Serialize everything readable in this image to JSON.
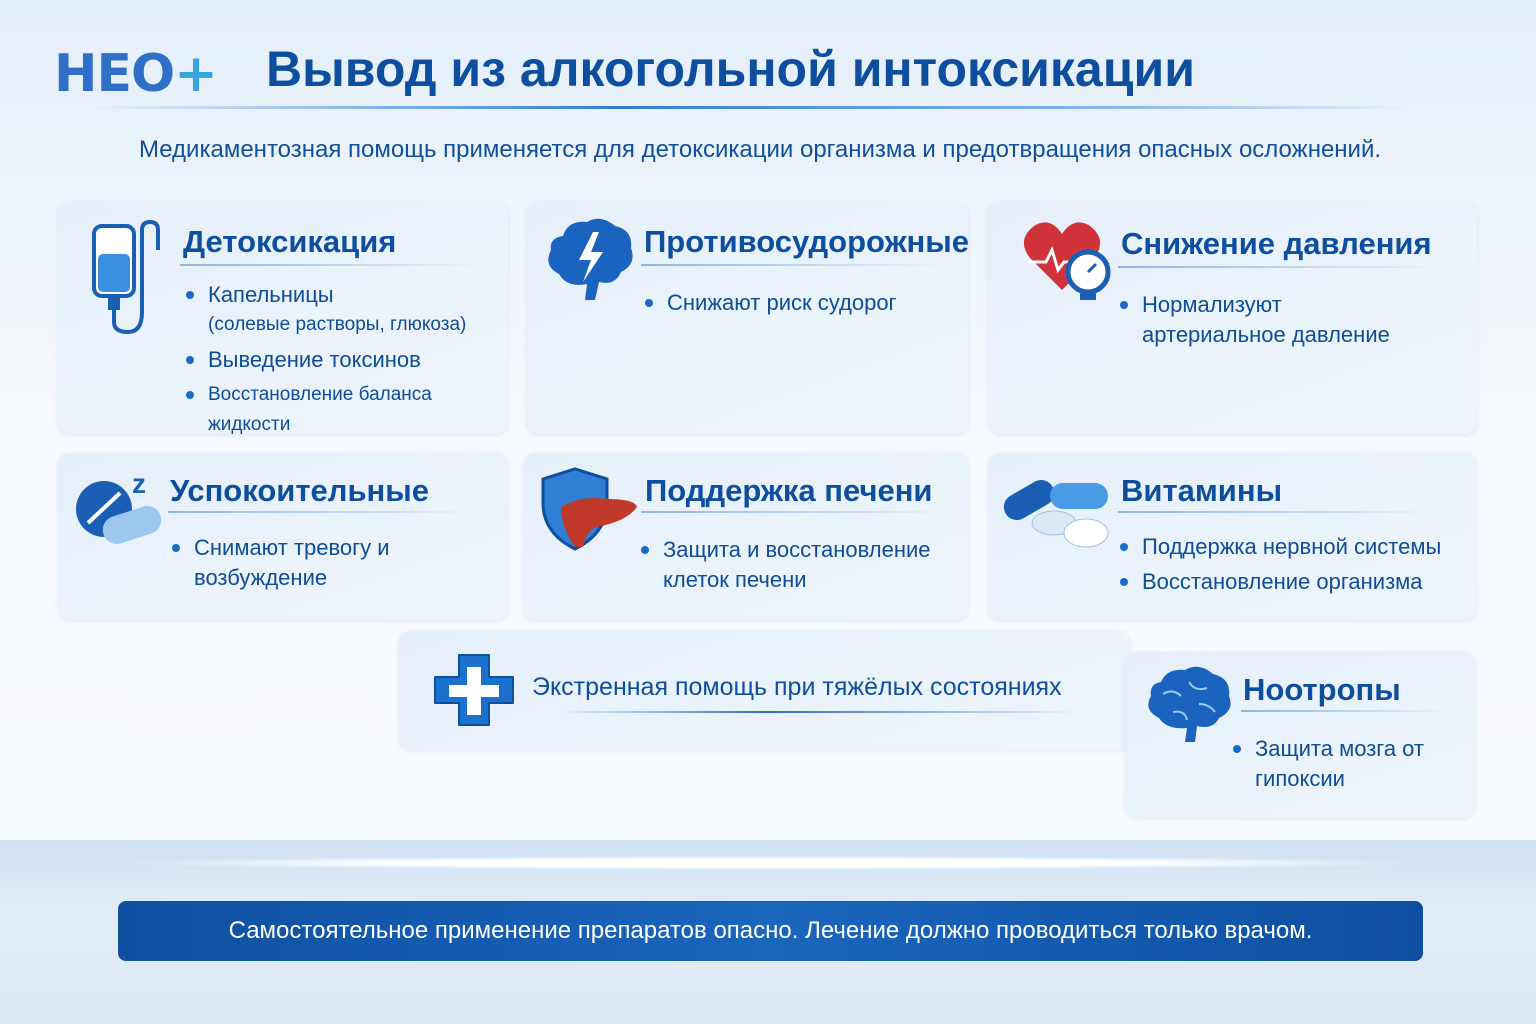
{
  "logo": {
    "text": "НЕО",
    "plus": "+"
  },
  "header": {
    "title": "Вывод из алкогольной интоксикации",
    "subtitle": "Медикаментозная помощь применяется для детоксикации организма и предотвращения опасных осложнений."
  },
  "cards": [
    {
      "title": "Детоксикация",
      "icon": "iv-drip-icon",
      "items": [
        {
          "text": "Капельницы",
          "sub": "(солевые растворы, глюкоза)"
        },
        {
          "text": "Выведение токсинов"
        },
        {
          "text": "Восстановление баланса жидкости"
        }
      ]
    },
    {
      "title": "Противосудорожные",
      "icon": "brain-lightning-icon",
      "items": [
        {
          "text": "Снижают риск судорог"
        }
      ]
    },
    {
      "title": "Снижение давления",
      "icon": "heart-gauge-icon",
      "items": [
        {
          "text": "Нормализуют артериальное давление"
        }
      ]
    },
    {
      "title": "Успокоительные",
      "icon": "sleep-pills-icon",
      "items": [
        {
          "text": "Снимают тревогу и возбуждение"
        }
      ]
    },
    {
      "title": "Поддержка печени",
      "icon": "liver-shield-icon",
      "items": [
        {
          "text": "Защита и восстановление клеток печени"
        }
      ]
    },
    {
      "title": "Витамины",
      "icon": "vitamin-pills-icon",
      "items": [
        {
          "text": "Поддержка нервной системы"
        },
        {
          "text": "Восстановление организма"
        }
      ]
    },
    {
      "title": "Экстренная помощь при тяжёлых состояниях",
      "icon": "medical-cross-icon"
    },
    {
      "title": "Ноотропы",
      "icon": "brain-icon",
      "items": [
        {
          "text": "Защита мозга от гипоксии"
        }
      ]
    }
  ],
  "footer": {
    "warning": "Самостоятельное применение препаратов опасно. Лечение должно проводиться только врачом."
  },
  "colors": {
    "primary": "#0d4f9e",
    "accent": "#1a6bc4",
    "heart": "#d0343a",
    "banner": "#1259ad"
  }
}
